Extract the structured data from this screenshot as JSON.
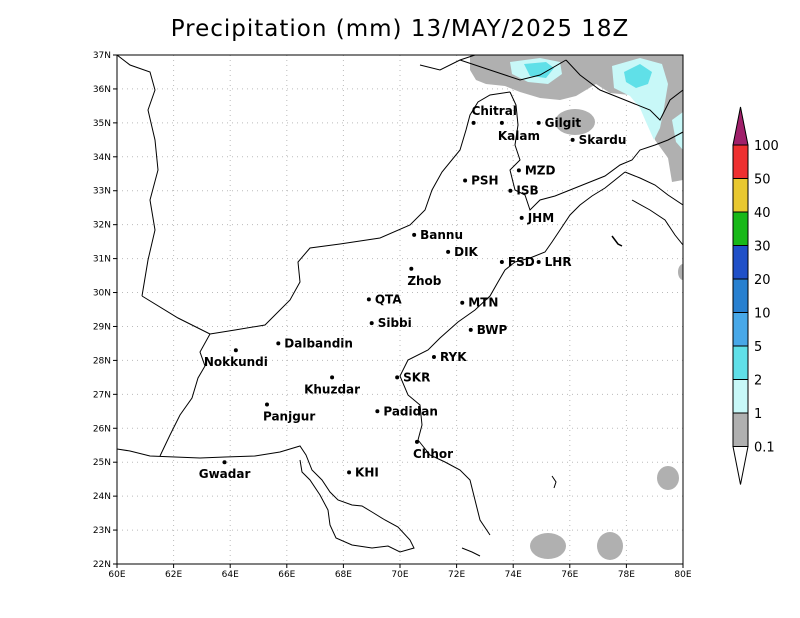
{
  "title": "Precipitation (mm) 13/MAY/2025 18Z",
  "map": {
    "lon_range": [
      60,
      80
    ],
    "lat_range": [
      22,
      37
    ],
    "lon_ticks": [
      "60E",
      "62E",
      "64E",
      "66E",
      "68E",
      "70E",
      "72E",
      "74E",
      "76E",
      "78E",
      "80E"
    ],
    "lat_ticks": [
      "22N",
      "23N",
      "24N",
      "25N",
      "26N",
      "27N",
      "28N",
      "29N",
      "30N",
      "31N",
      "32N",
      "33N",
      "34N",
      "35N",
      "36N",
      "37N"
    ],
    "grid": true
  },
  "cities": [
    {
      "name": "Chitral",
      "lon": 72.6,
      "lat": 35.0
    },
    {
      "name": "Gilgit",
      "lon": 74.9,
      "lat": 35.0
    },
    {
      "name": "Kalam",
      "lon": 73.6,
      "lat": 35.0
    },
    {
      "name": "Skardu",
      "lon": 76.1,
      "lat": 34.5
    },
    {
      "name": "MZD",
      "lon": 74.2,
      "lat": 33.6
    },
    {
      "name": "PSH",
      "lon": 72.3,
      "lat": 33.3
    },
    {
      "name": "ISB",
      "lon": 73.9,
      "lat": 33.0
    },
    {
      "name": "JHM",
      "lon": 74.3,
      "lat": 32.2
    },
    {
      "name": "Bannu",
      "lon": 70.5,
      "lat": 31.7
    },
    {
      "name": "DIK",
      "lon": 71.7,
      "lat": 31.2
    },
    {
      "name": "FSD",
      "lon": 73.6,
      "lat": 30.9
    },
    {
      "name": "LHR",
      "lon": 74.9,
      "lat": 30.9
    },
    {
      "name": "Zhob",
      "lon": 70.4,
      "lat": 30.7
    },
    {
      "name": "QTA",
      "lon": 68.9,
      "lat": 29.8
    },
    {
      "name": "MTN",
      "lon": 72.2,
      "lat": 29.7
    },
    {
      "name": "Sibbi",
      "lon": 69.0,
      "lat": 29.1
    },
    {
      "name": "BWP",
      "lon": 72.5,
      "lat": 28.9
    },
    {
      "name": "Nokkundi",
      "lon": 64.2,
      "lat": 28.3
    },
    {
      "name": "Dalbandin",
      "lon": 65.7,
      "lat": 28.5
    },
    {
      "name": "RYK",
      "lon": 71.2,
      "lat": 28.1
    },
    {
      "name": "Khuzdar",
      "lon": 67.6,
      "lat": 27.5
    },
    {
      "name": "SKR",
      "lon": 69.9,
      "lat": 27.5
    },
    {
      "name": "Padidan",
      "lon": 69.2,
      "lat": 26.5
    },
    {
      "name": "Panjgur",
      "lon": 65.3,
      "lat": 26.7
    },
    {
      "name": "Chhor",
      "lon": 70.6,
      "lat": 25.6
    },
    {
      "name": "KHI",
      "lon": 68.2,
      "lat": 24.7
    },
    {
      "name": "Gwadar",
      "lon": 63.8,
      "lat": 25.0
    }
  ],
  "legend": {
    "labels": [
      "100",
      "50",
      "40",
      "30",
      "20",
      "10",
      "5",
      "2",
      "1",
      "0.1"
    ],
    "colors": [
      "#a0206a",
      "#ee3030",
      "#e8c830",
      "#18b818",
      "#2050c8",
      "#2880d0",
      "#48a8e8",
      "#60e0e8",
      "#c8f8f8",
      "#b0b0b0",
      "#ffffff"
    ]
  },
  "colors": {
    "precip_light": "#b0b0b0",
    "precip_cyan": "#c8f8f8",
    "precip_cyan2": "#60e0e8"
  }
}
